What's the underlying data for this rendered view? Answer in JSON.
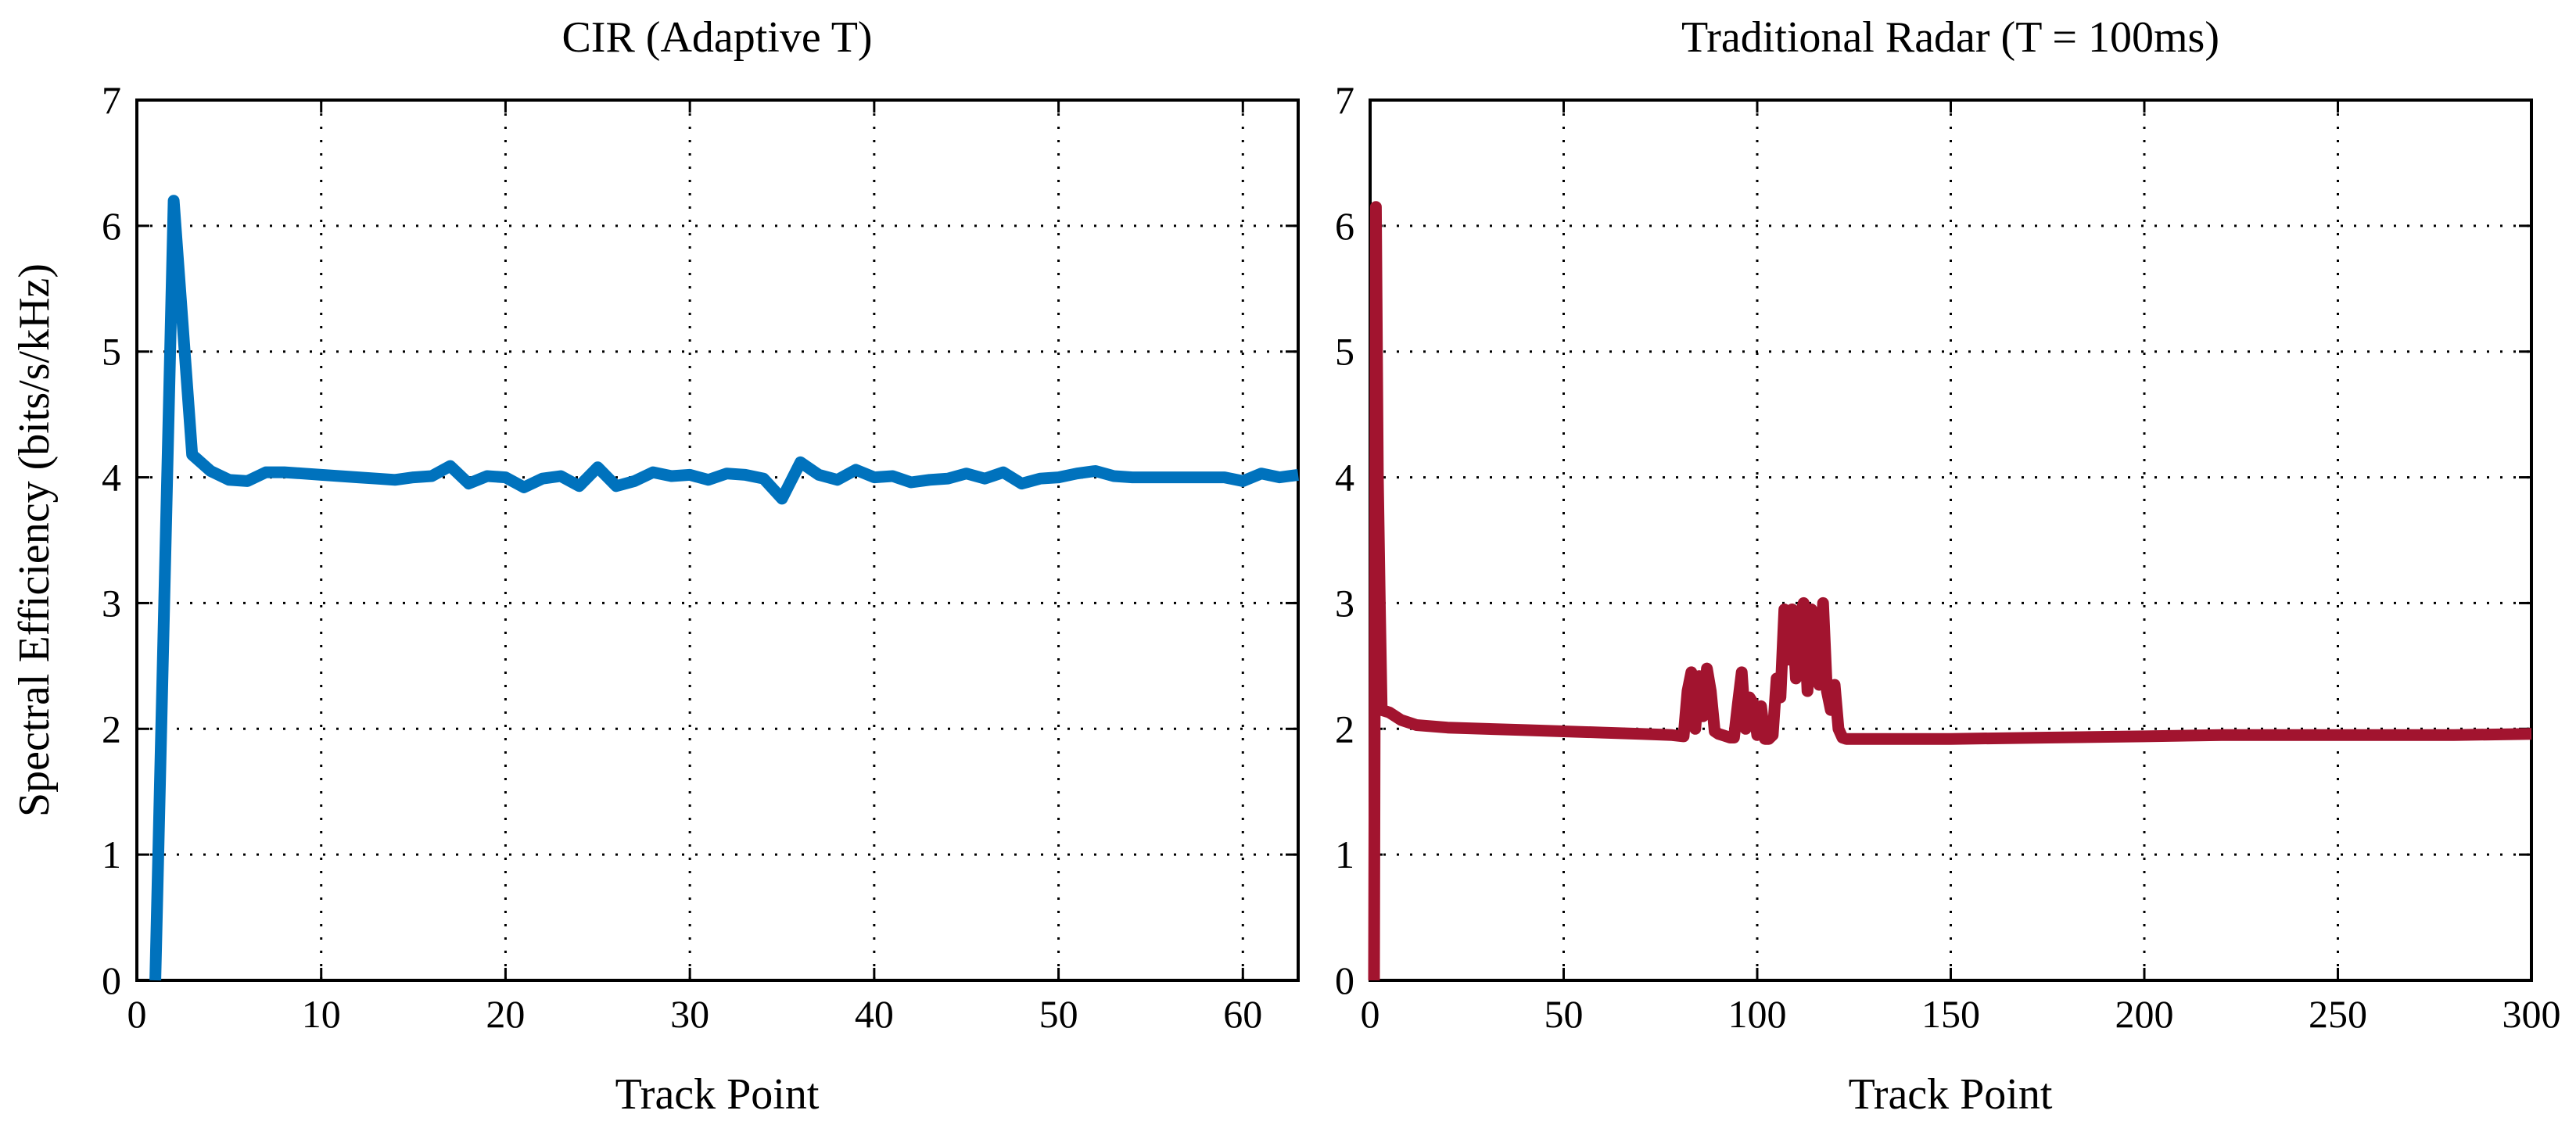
{
  "chart_data": [
    {
      "type": "line",
      "title": "CIR (Adaptive T)",
      "xlabel": "Track Point",
      "ylabel": "Spectral Efficiency (bits/s/kHz)",
      "xlim": [
        0,
        63
      ],
      "ylim": [
        0,
        7
      ],
      "xticks": [
        0,
        10,
        20,
        30,
        40,
        50,
        60
      ],
      "yticks": [
        0,
        1,
        2,
        3,
        4,
        5,
        6,
        7
      ],
      "grid": true,
      "series": [
        {
          "name": "CIR",
          "color": "#0072bd",
          "x": [
            1,
            2,
            3,
            4,
            5,
            6,
            7,
            8,
            9,
            10,
            11,
            12,
            13,
            14,
            15,
            16,
            17,
            18,
            19,
            20,
            21,
            22,
            23,
            24,
            25,
            26,
            27,
            28,
            29,
            30,
            31,
            32,
            33,
            34,
            35,
            36,
            37,
            38,
            39,
            40,
            41,
            42,
            43,
            44,
            45,
            46,
            47,
            48,
            49,
            50,
            51,
            52,
            53,
            54,
            55,
            56,
            57,
            58,
            59,
            60,
            61,
            62,
            63
          ],
          "y": [
            0,
            6.2,
            4.18,
            4.05,
            3.98,
            3.97,
            4.04,
            4.04,
            4.03,
            4.02,
            4.01,
            4.0,
            3.99,
            3.98,
            4.0,
            4.01,
            4.09,
            3.95,
            4.01,
            4.0,
            3.92,
            3.99,
            4.01,
            3.93,
            4.08,
            3.93,
            3.97,
            4.04,
            4.01,
            4.02,
            3.98,
            4.03,
            4.02,
            3.99,
            3.83,
            4.12,
            4.02,
            3.98,
            4.06,
            4.0,
            4.01,
            3.96,
            3.98,
            3.99,
            4.03,
            3.99,
            4.04,
            3.95,
            3.99,
            4.0,
            4.03,
            4.05,
            4.01,
            4.0,
            4.0,
            4.0,
            4.0,
            4.0,
            4.0,
            3.97,
            4.03,
            4.0,
            4.02
          ]
        }
      ]
    },
    {
      "type": "line",
      "title": "Traditional Radar (T = 100ms)",
      "xlabel": "Track Point",
      "ylabel": "",
      "xlim": [
        0,
        300
      ],
      "ylim": [
        0,
        7
      ],
      "xticks": [
        0,
        50,
        100,
        150,
        200,
        250,
        300
      ],
      "yticks": [
        0,
        1,
        2,
        3,
        4,
        5,
        6,
        7
      ],
      "grid": true,
      "series": [
        {
          "name": "Traditional Radar",
          "color": "#a2142f",
          "x": [
            1,
            1.5,
            2,
            2.5,
            3,
            5,
            8,
            12,
            20,
            40,
            60,
            70,
            78,
            81,
            82,
            83,
            84,
            85,
            86,
            87,
            88,
            89,
            90,
            91,
            92,
            93,
            94,
            95,
            96,
            97,
            98,
            99,
            100,
            101,
            102,
            103,
            104,
            105,
            106,
            107,
            108,
            109,
            110,
            111,
            112,
            113,
            114,
            115,
            116,
            117,
            118,
            119,
            120,
            121,
            122,
            123,
            124,
            125,
            126,
            130,
            140,
            150,
            175,
            200,
            220,
            250,
            280,
            300
          ],
          "y": [
            0,
            6.15,
            4.0,
            3.0,
            2.15,
            2.13,
            2.07,
            2.03,
            2.01,
            1.99,
            1.97,
            1.96,
            1.95,
            1.94,
            2.3,
            2.45,
            2.0,
            2.42,
            2.1,
            2.48,
            2.3,
            1.98,
            1.96,
            1.95,
            1.94,
            1.93,
            1.93,
            2.2,
            2.45,
            2.0,
            2.25,
            2.2,
            1.95,
            2.18,
            1.92,
            1.92,
            1.95,
            2.4,
            2.25,
            2.95,
            2.55,
            2.95,
            2.4,
            2.9,
            3.0,
            2.3,
            2.95,
            2.9,
            2.35,
            3.0,
            2.3,
            2.15,
            2.35,
            2.0,
            1.93,
            1.92,
            1.92,
            1.92,
            1.92,
            1.92,
            1.92,
            1.92,
            1.93,
            1.94,
            1.95,
            1.95,
            1.95,
            1.96
          ]
        }
      ]
    }
  ]
}
